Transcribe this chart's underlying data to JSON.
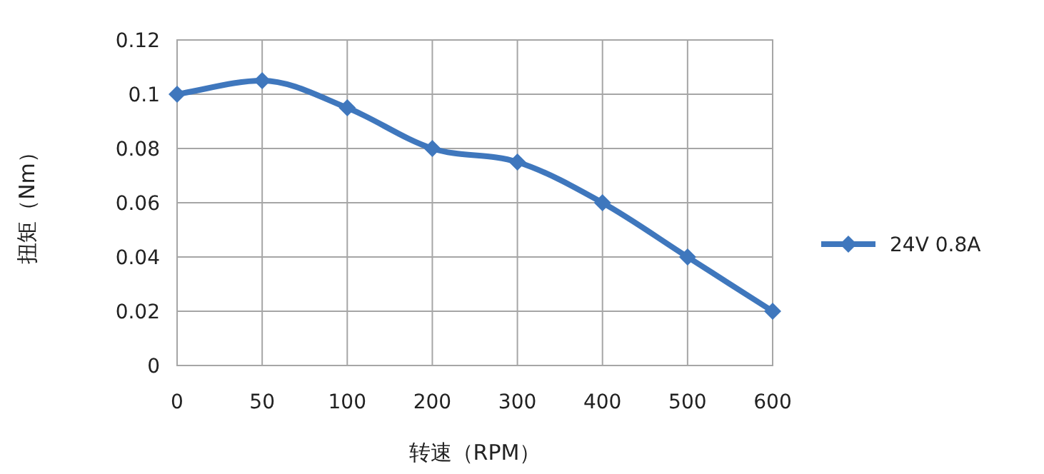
{
  "chart_data": {
    "type": "line",
    "xlabel": "转速（RPM）",
    "ylabel": "扭矩（Nm）",
    "categories": [
      "0",
      "50",
      "100",
      "200",
      "300",
      "400",
      "500",
      "600"
    ],
    "series": [
      {
        "name": "24V 0.8A",
        "color": "#3f77bd",
        "values": [
          0.1,
          0.105,
          0.095,
          0.08,
          0.075,
          0.06,
          0.04,
          0.02
        ]
      }
    ],
    "ylim": [
      0,
      0.12
    ],
    "yticks": [
      0,
      0.02,
      0.04,
      0.06,
      0.08,
      0.1,
      0.12
    ],
    "grid": true,
    "legend": "right",
    "marker": "diamond",
    "line_style": "solid"
  }
}
